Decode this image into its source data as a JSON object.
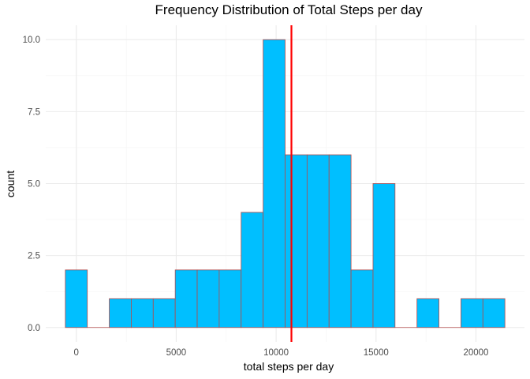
{
  "chart_data": {
    "type": "bar",
    "title": "Frequency Distribution of Total Steps per day",
    "xlabel": "total steps per day",
    "ylabel": "count",
    "bin_width": 1100,
    "bins": [
      {
        "start": -550,
        "end": 550,
        "count": 2
      },
      {
        "start": 550,
        "end": 1650,
        "count": 0
      },
      {
        "start": 1650,
        "end": 2750,
        "count": 1
      },
      {
        "start": 2750,
        "end": 3850,
        "count": 1
      },
      {
        "start": 3850,
        "end": 4950,
        "count": 1
      },
      {
        "start": 4950,
        "end": 6050,
        "count": 2
      },
      {
        "start": 6050,
        "end": 7150,
        "count": 2
      },
      {
        "start": 7150,
        "end": 8250,
        "count": 2
      },
      {
        "start": 8250,
        "end": 9350,
        "count": 4
      },
      {
        "start": 9350,
        "end": 10450,
        "count": 10
      },
      {
        "start": 10450,
        "end": 11550,
        "count": 6
      },
      {
        "start": 11550,
        "end": 12650,
        "count": 6
      },
      {
        "start": 12650,
        "end": 13750,
        "count": 6
      },
      {
        "start": 13750,
        "end": 14850,
        "count": 2
      },
      {
        "start": 14850,
        "end": 15950,
        "count": 5
      },
      {
        "start": 15950,
        "end": 17050,
        "count": 0
      },
      {
        "start": 17050,
        "end": 18150,
        "count": 1
      },
      {
        "start": 18150,
        "end": 19250,
        "count": 0
      },
      {
        "start": 19250,
        "end": 20350,
        "count": 1
      },
      {
        "start": 20350,
        "end": 21450,
        "count": 1
      }
    ],
    "xlim": [
      -1530,
      22430
    ],
    "ylim": [
      -0.5,
      10.5
    ],
    "x_ticks": [
      0,
      5000,
      10000,
      15000,
      20000
    ],
    "x_tick_labels": [
      "0",
      "5000",
      "10000",
      "15000",
      "20000"
    ],
    "y_ticks": [
      0,
      2.5,
      5,
      7.5,
      10
    ],
    "y_tick_labels": [
      "0.0",
      "2.5",
      "5.0",
      "7.5",
      "10.0"
    ],
    "mean_line": 10766,
    "grid": true,
    "legend": "none",
    "colors": {
      "bar_fill": "#00bfff",
      "bar_outline": "#b34a4a",
      "mean_line": "#ff0000",
      "background": "#ffffff"
    }
  }
}
